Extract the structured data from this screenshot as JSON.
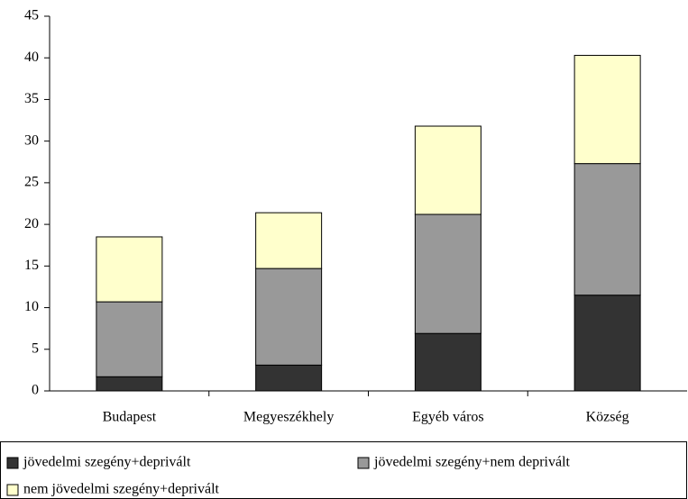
{
  "chart_data": {
    "type": "stacked_bar",
    "categories": [
      "Budapest",
      "Megyeszékhely",
      "Egyéb város",
      "Község"
    ],
    "series": [
      {
        "name": "jövedelmi szegény+deprivált",
        "color": "#333333",
        "values": [
          1.7,
          3.1,
          6.9,
          11.5
        ]
      },
      {
        "name": "jövedelmi szegény+nem deprivált",
        "color": "#999999",
        "values": [
          9.0,
          11.6,
          14.3,
          15.8
        ]
      },
      {
        "name": "nem jövedelmi szegény+deprivált",
        "color": "#ffffcc",
        "values": [
          7.8,
          6.7,
          10.6,
          13.0
        ]
      }
    ],
    "ylim": [
      0,
      45
    ],
    "yticks": [
      0,
      5,
      10,
      15,
      20,
      25,
      30,
      35,
      40,
      45
    ],
    "grid": false
  }
}
